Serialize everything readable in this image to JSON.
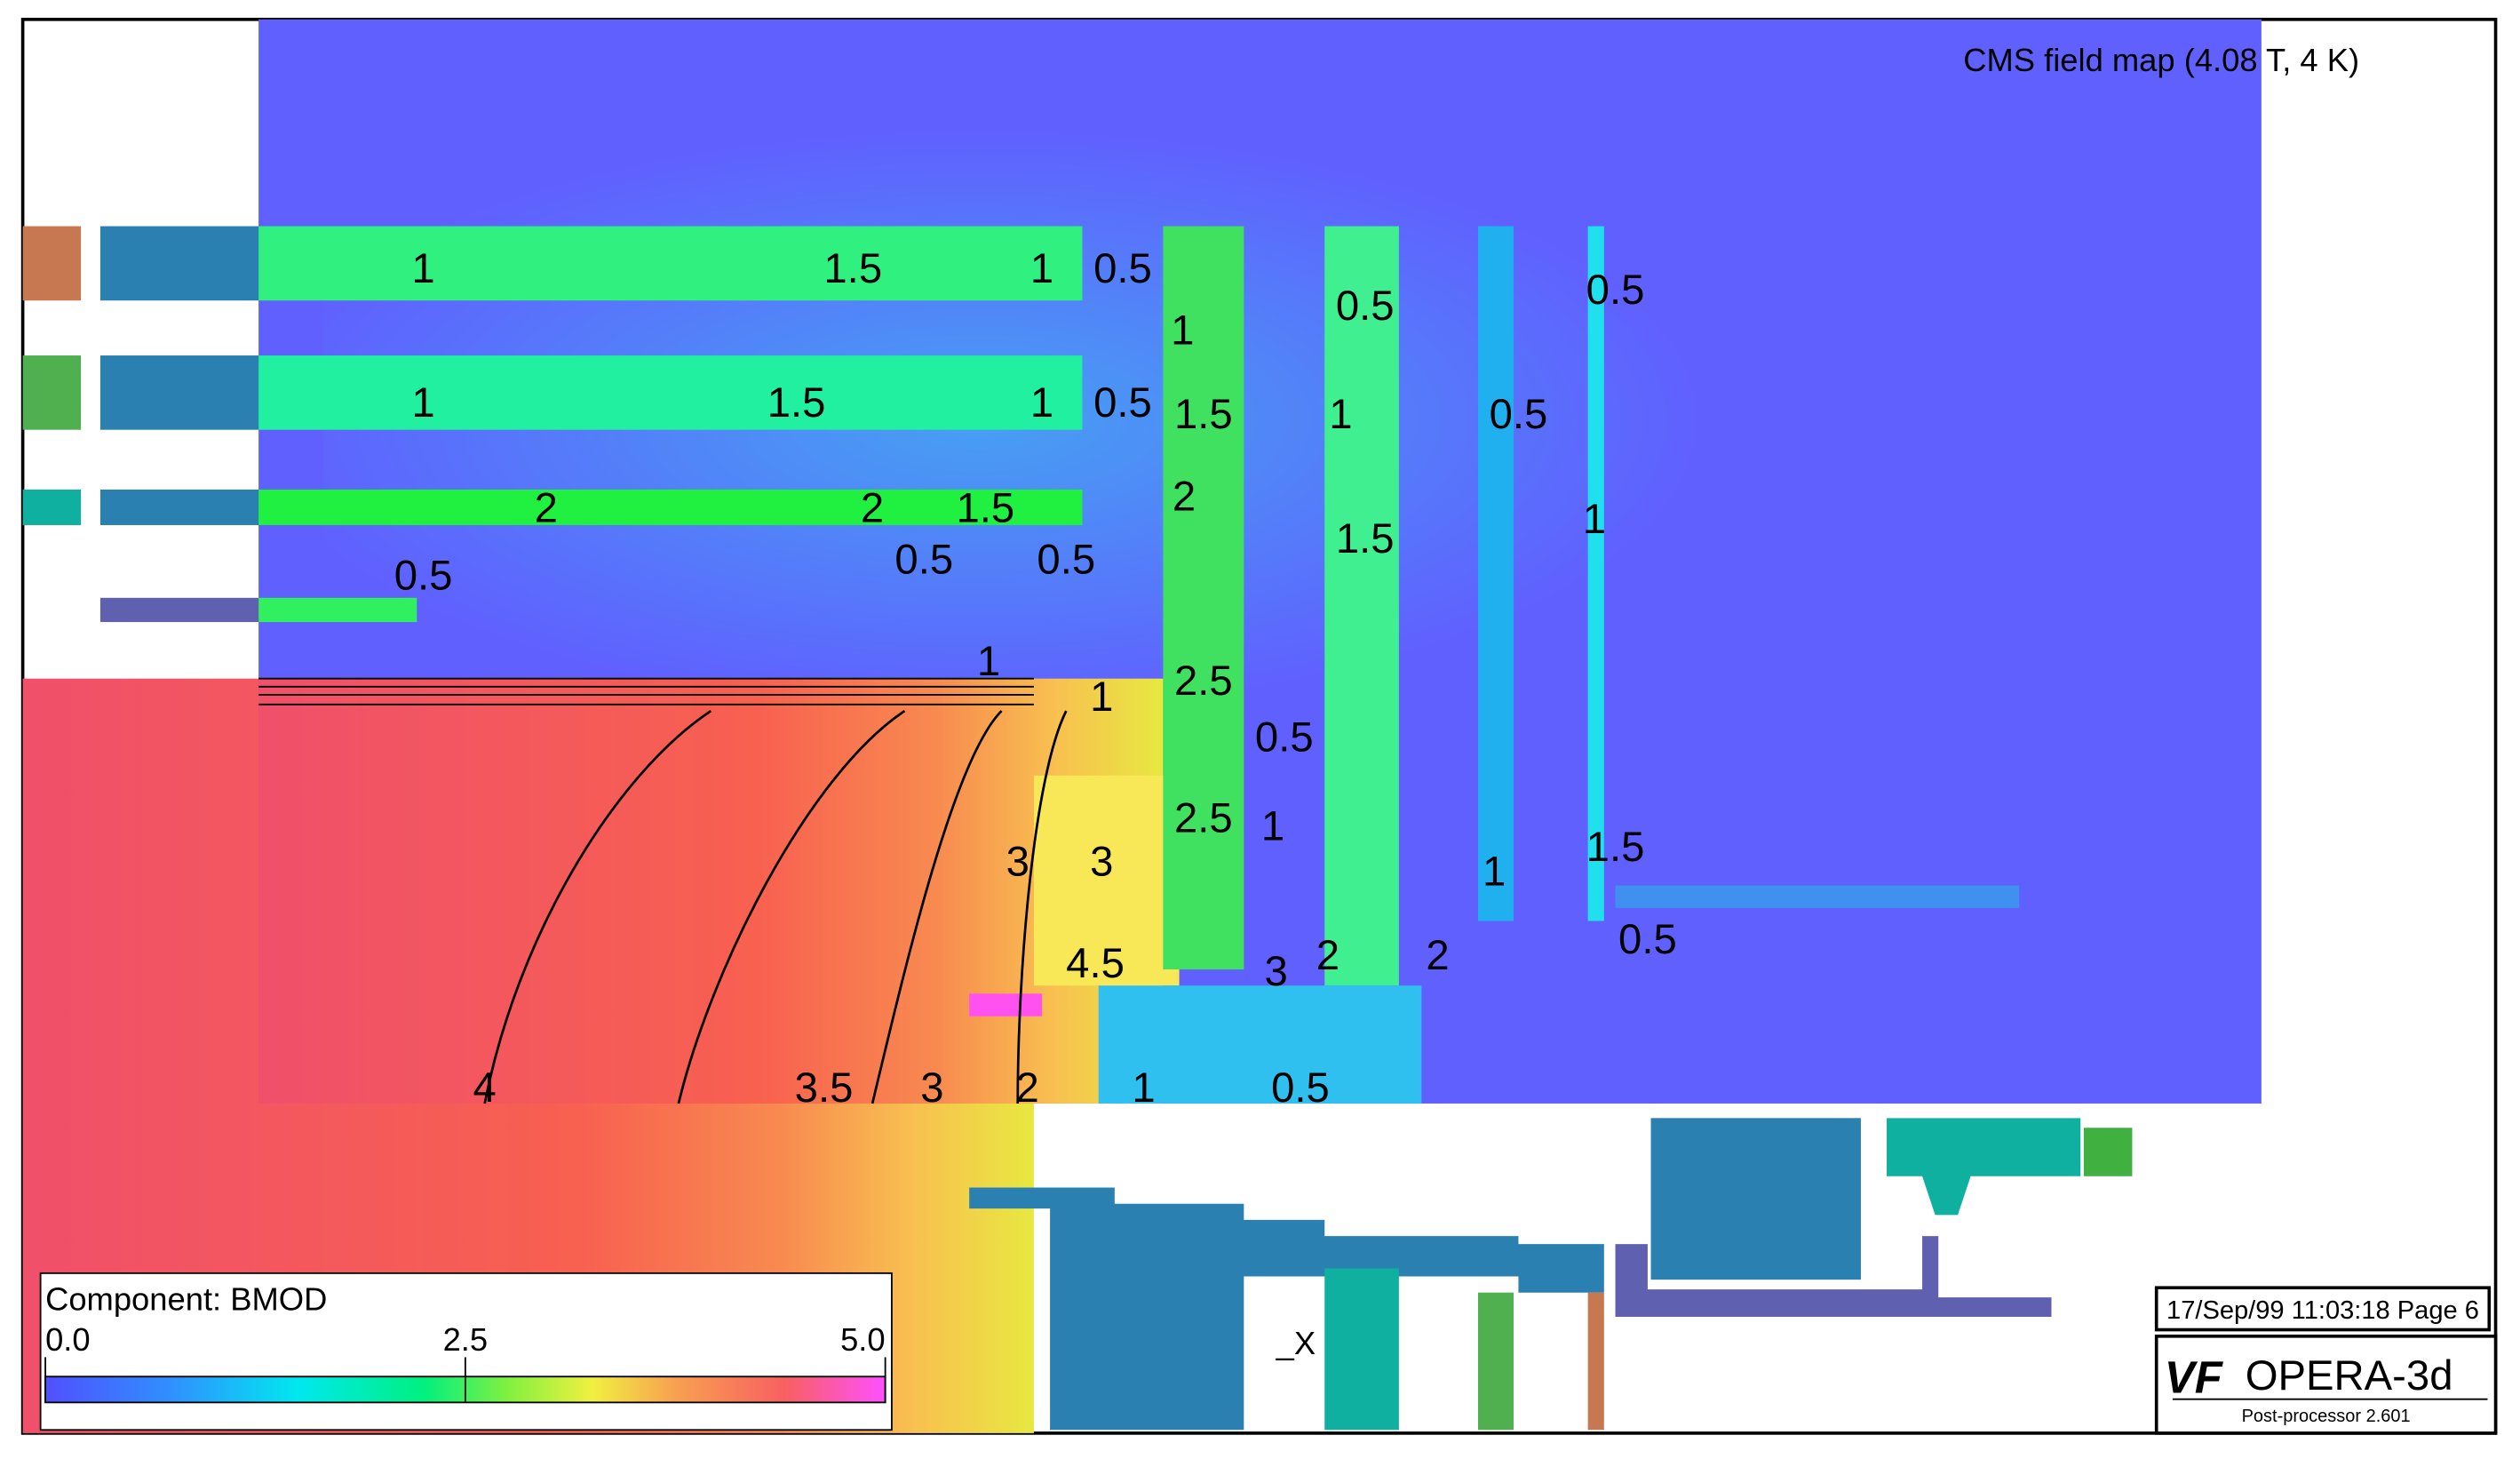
{
  "title": "CMS field map (4.08 T, 4 K)",
  "contour_labels": [
    "1",
    "1",
    "1.5",
    "1",
    "0.5",
    "0.5",
    "0.5",
    "1",
    "1.5",
    "1",
    "0.5",
    "1.5",
    "1",
    "0.5",
    "2",
    "2",
    "1.5",
    "2",
    "1.5",
    "1",
    "0.5",
    "0.5",
    "0.5",
    "1",
    "1",
    "2.5",
    "0.5",
    "2.5",
    "1",
    "3",
    "3",
    "1",
    "1.5",
    "0.5",
    "4.5",
    "3",
    "2",
    "2",
    "4",
    "3.5",
    "3",
    "2",
    "1",
    "0.5"
  ],
  "axis_label": "_X",
  "colorbar": {
    "label": "Component: BMOD",
    "ticks": [
      {
        "value": 0,
        "label": "0.0"
      },
      {
        "value": 2.5,
        "label": "2.5"
      },
      {
        "value": 5,
        "label": "5.0"
      }
    ],
    "range": [
      0,
      5
    ]
  },
  "footer": {
    "stamp": "17/Sep/99 11:03:18 Page 6",
    "logo": "VF",
    "product": "OPERA-3d",
    "version": "Post-processor 2.601"
  }
}
